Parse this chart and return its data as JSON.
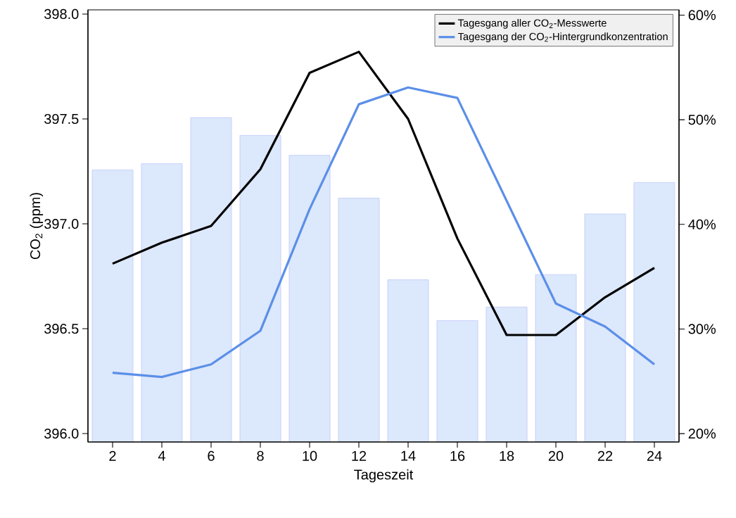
{
  "chart_data": {
    "type": "line",
    "xlabel": "Tageszeit",
    "ylabel": "CO$_{2}$ (ppm)",
    "x": [
      2,
      4,
      6,
      8,
      10,
      12,
      14,
      16,
      18,
      20,
      22,
      24
    ],
    "series": [
      {
        "type": "bar",
        "axis": "y2",
        "color": "#dce8fb",
        "values": [
          45.2,
          45.8,
          50.2,
          48.5,
          46.6,
          42.5,
          34.7,
          30.8,
          32.1,
          35.2,
          41.0,
          44.0
        ]
      },
      {
        "name": "Tagesgang aller CO$_{2}$-Messwerte",
        "color": "#000000",
        "values": [
          396.81,
          396.91,
          396.99,
          397.26,
          397.72,
          397.82,
          397.5,
          396.93,
          396.47,
          396.47,
          396.65,
          396.79
        ]
      },
      {
        "name": "Tagesgang der CO$_{2}$-Hintergrundkonzentration",
        "color": "#5b8fe8",
        "values": [
          396.29,
          396.27,
          396.33,
          396.49,
          397.07,
          397.57,
          397.65,
          397.6,
          397.11,
          396.62,
          396.51,
          396.33
        ]
      }
    ],
    "xlim": [
      1,
      25
    ],
    "xticks": [
      2,
      4,
      6,
      8,
      10,
      12,
      14,
      16,
      18,
      20,
      22,
      24
    ],
    "ylim": [
      395.96,
      398.02
    ],
    "yticks": [
      {
        "value": 396,
        "label": "396.0"
      },
      {
        "value": 396.5,
        "label": "396.5"
      },
      {
        "value": 397,
        "label": "397.0"
      },
      {
        "value": 397.5,
        "label": "397.5"
      },
      {
        "value": 398,
        "label": "398.0"
      }
    ],
    "y2lim": [
      19.2,
      60.5
    ],
    "y2ticks": [
      {
        "value": 20,
        "label": "20%"
      },
      {
        "value": 30,
        "label": "30%"
      },
      {
        "value": 40,
        "label": "40%"
      },
      {
        "value": 50,
        "label": "50%"
      },
      {
        "value": 60,
        "label": "60%"
      }
    ],
    "legend": "top right",
    "grid": false,
    "marker": "none"
  }
}
